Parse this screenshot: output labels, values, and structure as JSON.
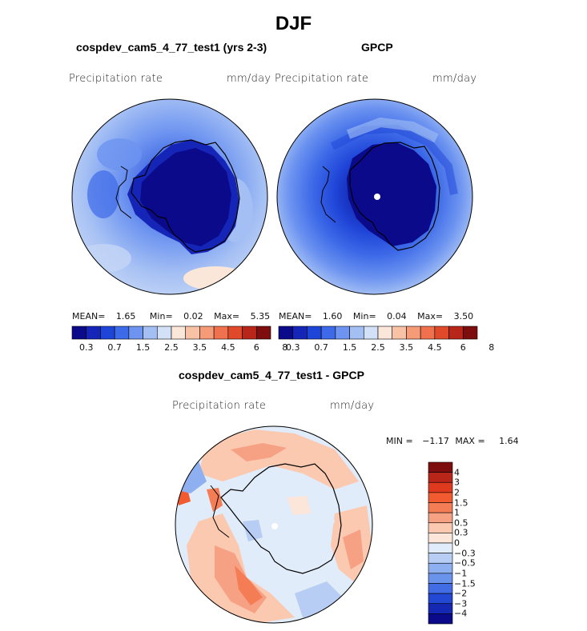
{
  "figure": {
    "title": "DJF"
  },
  "panels": [
    {
      "title": "cospdev_cam5_4_77_test1 (yrs 2-3)",
      "var_label": "Precipitation rate",
      "units": "mm/day",
      "mean_label": "MEAN=",
      "mean": "1.65",
      "min_label": "Min=",
      "min": "0.02",
      "max_label": "Max=",
      "max": "5.35"
    },
    {
      "title": "GPCP",
      "var_label": "Precipitation rate",
      "units": "mm/day",
      "mean_label": "MEAN=",
      "mean": "1.60",
      "min_label": "Min=",
      "min": "0.04",
      "max_label": "Max=",
      "max": "3.50"
    }
  ],
  "diff_panel": {
    "title": "cospdev_cam5_4_77_test1 - GPCP",
    "var_label": "Precipitation rate",
    "units": "mm/day",
    "min_label": "MIN =",
    "min": "−1.17",
    "max_label": "MAX =",
    "max": "1.64"
  },
  "colorbars": {
    "precip": {
      "colors": [
        "#0a0a8a",
        "#1525b8",
        "#1f45d8",
        "#3d6ae8",
        "#6d94f0",
        "#a4bff4",
        "#d2e1f8",
        "#fbe6da",
        "#f7c2a6",
        "#f59b78",
        "#f0714e",
        "#e04a2a",
        "#b8261a",
        "#7e0d0d"
      ],
      "labels": [
        "0.3",
        "0.7",
        "1.5",
        "2.5",
        "3.5",
        "4.5",
        "6",
        "8"
      ]
    },
    "diff": {
      "colors": [
        "#7e0d0d",
        "#b8261a",
        "#e03a1e",
        "#f25a30",
        "#f57d55",
        "#f7a184",
        "#fbc8b0",
        "#fce6da",
        "#e1ecfa",
        "#b7cdf4",
        "#8fb0f0",
        "#6a93ec",
        "#416ce4",
        "#2348d4",
        "#1528b4",
        "#0a0a8a"
      ],
      "labels": [
        "4",
        "3",
        "2",
        "1.5",
        "1",
        "0.5",
        "0.3",
        "0",
        "−0.3",
        "−0.5",
        "−1",
        "−1.5",
        "−2",
        "−3",
        "−4"
      ]
    }
  }
}
